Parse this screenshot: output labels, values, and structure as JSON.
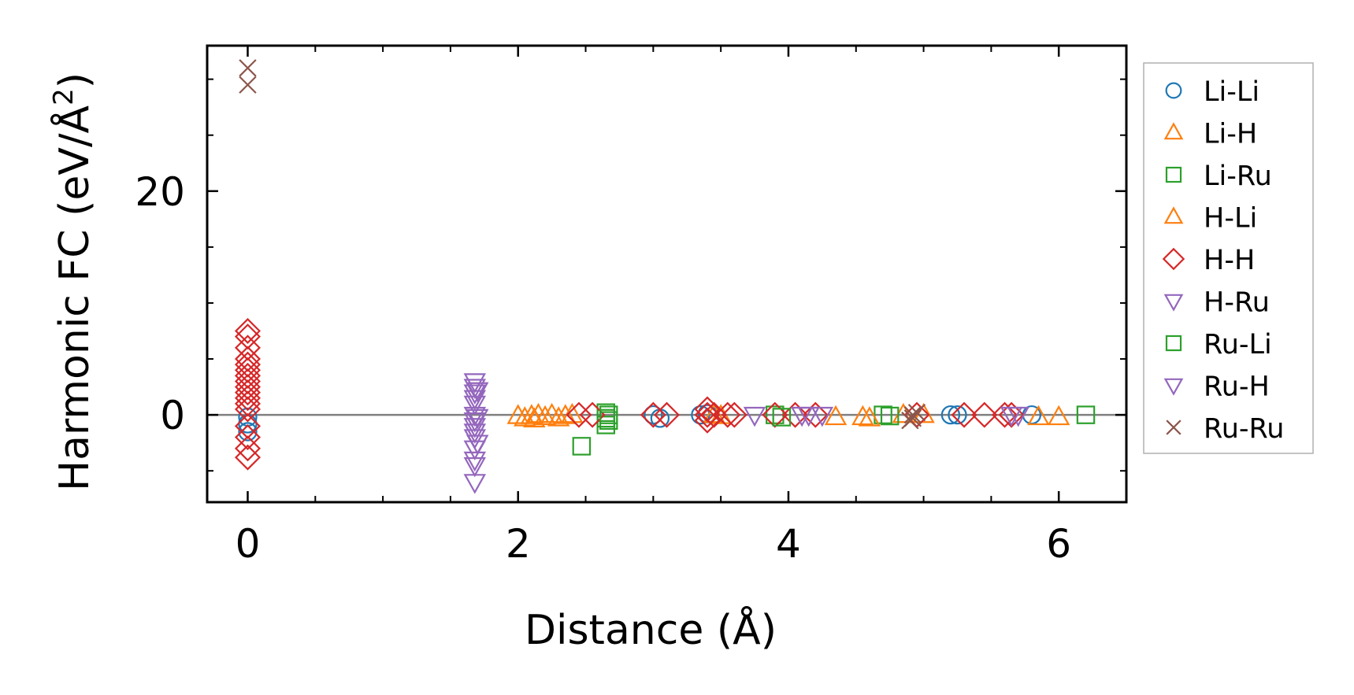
{
  "chart_data": {
    "type": "scatter",
    "title": "",
    "xlabel": "Distance (Å)",
    "ylabel_main": "Harmonic FC (eV/Å",
    "ylabel_sup": "2",
    "ylabel_close": ")",
    "xlim": [
      -0.3,
      6.5
    ],
    "ylim": [
      -7.8,
      33.0
    ],
    "xticks": [
      0,
      2,
      4,
      6
    ],
    "xtick_labels": [
      "0",
      "2",
      "4",
      "6"
    ],
    "yticks": [
      0,
      20
    ],
    "ytick_labels": [
      "0",
      "20"
    ],
    "x_minor_step": 0.5,
    "y_minor_step": 5,
    "zero_line": true,
    "grid": false,
    "legend_position": "outside-right",
    "colors": {
      "blue": "#1f77b4",
      "orange": "#ff7f0e",
      "green": "#2ca02c",
      "red": "#d62728",
      "purple": "#9467bd",
      "brown": "#8c564b",
      "zero_line": "#808080"
    },
    "series": [
      {
        "name": "Li-Li",
        "marker": "circle",
        "color": "#1f77b4",
        "points": [
          [
            0,
            -0.2
          ],
          [
            0,
            -0.8
          ],
          [
            0,
            -1.5
          ],
          [
            3.0,
            0
          ],
          [
            3.05,
            -0.3
          ],
          [
            3.35,
            0
          ],
          [
            3.4,
            0.1
          ],
          [
            5.2,
            0
          ],
          [
            5.25,
            0
          ],
          [
            5.8,
            0
          ]
        ]
      },
      {
        "name": "Li-H",
        "marker": "triangle-up",
        "color": "#ff7f0e",
        "points": [
          [
            2.05,
            -0.3
          ],
          [
            2.1,
            -0.1
          ],
          [
            2.15,
            0
          ],
          [
            2.2,
            -0.2
          ],
          [
            2.25,
            0
          ],
          [
            2.3,
            -0.3
          ],
          [
            2.4,
            0
          ],
          [
            3.45,
            0
          ],
          [
            3.5,
            -0.1
          ],
          [
            4.35,
            -0.2
          ],
          [
            4.55,
            -0.2
          ],
          [
            4.85,
            0
          ],
          [
            5.85,
            -0.2
          ],
          [
            6.0,
            -0.2
          ]
        ]
      },
      {
        "name": "Li-Ru",
        "marker": "square",
        "color": "#2ca02c",
        "points": [
          [
            2.65,
            0.2
          ],
          [
            2.65,
            -0.3
          ],
          [
            2.65,
            -0.9
          ],
          [
            2.47,
            -2.8
          ],
          [
            3.9,
            0
          ],
          [
            4.7,
            0
          ],
          [
            6.2,
            0
          ]
        ]
      },
      {
        "name": "H-Li",
        "marker": "triangle-up",
        "color": "#ff7f0e",
        "points": [
          [
            2.0,
            -0.1
          ],
          [
            2.12,
            -0.4
          ],
          [
            2.35,
            -0.1
          ],
          [
            4.6,
            -0.3
          ],
          [
            5.0,
            0
          ]
        ]
      },
      {
        "name": "H-H",
        "marker": "diamond",
        "color": "#d62728",
        "points": [
          [
            0,
            7.5
          ],
          [
            0,
            7.0
          ],
          [
            0,
            6.0
          ],
          [
            0,
            5.0
          ],
          [
            0,
            4.5
          ],
          [
            0,
            4.0
          ],
          [
            0,
            3.5
          ],
          [
            0,
            3.0
          ],
          [
            0,
            2.5
          ],
          [
            0,
            2.0
          ],
          [
            0,
            1.5
          ],
          [
            0,
            1.0
          ],
          [
            0,
            0.5
          ],
          [
            0,
            -1.0
          ],
          [
            0,
            -2.0
          ],
          [
            0,
            -3.0
          ],
          [
            0,
            -3.8
          ],
          [
            2.45,
            0
          ],
          [
            2.55,
            0
          ],
          [
            3.0,
            0
          ],
          [
            3.1,
            0
          ],
          [
            3.4,
            0.5
          ],
          [
            3.4,
            0
          ],
          [
            3.4,
            -0.5
          ],
          [
            3.45,
            0
          ],
          [
            3.55,
            0
          ],
          [
            3.6,
            0
          ],
          [
            3.9,
            0
          ],
          [
            4.05,
            0
          ],
          [
            4.2,
            0
          ],
          [
            4.95,
            0
          ],
          [
            5.3,
            0
          ],
          [
            5.45,
            0
          ],
          [
            5.6,
            0
          ],
          [
            5.65,
            0
          ]
        ]
      },
      {
        "name": "H-Ru",
        "marker": "triangle-down",
        "color": "#9467bd",
        "points": [
          [
            1.68,
            3.0
          ],
          [
            1.68,
            2.5
          ],
          [
            1.68,
            2.0
          ],
          [
            1.68,
            1.5
          ],
          [
            1.68,
            1.0
          ],
          [
            1.68,
            0
          ],
          [
            1.68,
            -0.5
          ],
          [
            1.68,
            -1.0
          ],
          [
            1.68,
            -1.5
          ],
          [
            1.68,
            -2.0
          ],
          [
            1.68,
            -3.0
          ],
          [
            1.68,
            -4.0
          ],
          [
            1.68,
            -4.5
          ],
          [
            1.68,
            -6.0
          ],
          [
            3.75,
            0
          ],
          [
            4.1,
            0
          ],
          [
            4.25,
            0
          ],
          [
            5.7,
            0
          ]
        ]
      },
      {
        "name": "Ru-Li",
        "marker": "square",
        "color": "#2ca02c",
        "points": [
          [
            2.67,
            0
          ],
          [
            2.67,
            -0.5
          ],
          [
            3.95,
            -0.2
          ],
          [
            4.75,
            -0.1
          ]
        ]
      },
      {
        "name": "Ru-H",
        "marker": "triangle-down",
        "color": "#9467bd",
        "points": [
          [
            1.7,
            2.2
          ],
          [
            1.7,
            -0.2
          ],
          [
            1.7,
            -2.5
          ],
          [
            4.15,
            0
          ],
          [
            5.65,
            0
          ]
        ]
      },
      {
        "name": "Ru-Ru",
        "marker": "x",
        "color": "#8c564b",
        "points": [
          [
            0,
            31.0
          ],
          [
            0,
            29.5
          ],
          [
            4.92,
            0
          ],
          [
            4.92,
            -0.3
          ],
          [
            4.95,
            0.2
          ],
          [
            4.9,
            -0.5
          ]
        ]
      }
    ]
  }
}
